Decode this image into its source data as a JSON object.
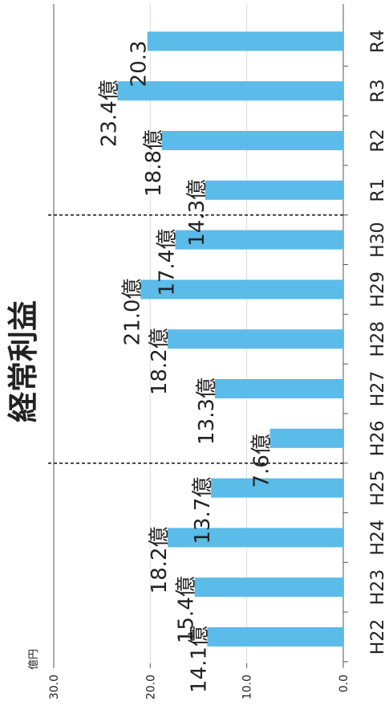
{
  "chart_data": {
    "type": "bar",
    "title": "経常利益",
    "unit": "億円",
    "value_suffix": "億",
    "categories": [
      "H22",
      "H23",
      "H24",
      "H25",
      "H26",
      "H27",
      "H28",
      "H29",
      "H30",
      "R1",
      "R2",
      "R3",
      "R4"
    ],
    "values": [
      14.1,
      15.4,
      18.2,
      13.7,
      7.6,
      13.3,
      18.2,
      21.0,
      17.4,
      14.3,
      18.8,
      23.4,
      20.3
    ],
    "data_labels": [
      "14.1億",
      "15.4億",
      "18.2億",
      "13.7億",
      "7.6億",
      "13.3億",
      "18.2億",
      "21.0億",
      "17.4億",
      "14.3億",
      "18.8億",
      "23.4億",
      "20.3"
    ],
    "yticks": [
      "0.0",
      "10.0",
      "20.0",
      "30.0"
    ],
    "ylim": [
      0,
      30
    ],
    "bar_color": "#5bbbe9",
    "grid": true,
    "dividers_after": [
      "H25",
      "H30"
    ],
    "orientation": "rotated-90"
  }
}
